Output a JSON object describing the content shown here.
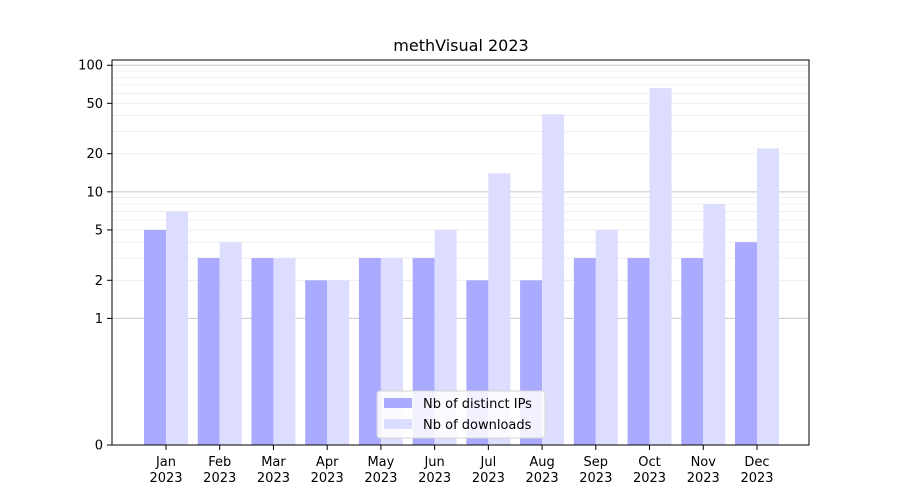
{
  "chart_data": {
    "type": "bar",
    "title": "methVisual 2023",
    "xlabel": "",
    "ylabel": "",
    "scale": "symlog",
    "categories": [
      [
        "Jan",
        "2023"
      ],
      [
        "Feb",
        "2023"
      ],
      [
        "Mar",
        "2023"
      ],
      [
        "Apr",
        "2023"
      ],
      [
        "May",
        "2023"
      ],
      [
        "Jun",
        "2023"
      ],
      [
        "Jul",
        "2023"
      ],
      [
        "Aug",
        "2023"
      ],
      [
        "Sep",
        "2023"
      ],
      [
        "Oct",
        "2023"
      ],
      [
        "Nov",
        "2023"
      ],
      [
        "Dec",
        "2023"
      ]
    ],
    "yticks": [
      0,
      1,
      2,
      5,
      10,
      20,
      50,
      100
    ],
    "ylim": [
      0,
      110
    ],
    "major_gridlines": [
      1,
      10,
      100
    ],
    "series": [
      {
        "name": "Nb of distinct IPs",
        "color": "#aaaaff",
        "values": [
          5,
          3,
          3,
          2,
          3,
          3,
          2,
          2,
          3,
          3,
          3,
          4
        ]
      },
      {
        "name": "Nb of downloads",
        "color": "#ddddff",
        "values": [
          7,
          4,
          3,
          2,
          3,
          5,
          14,
          41,
          5,
          66,
          8,
          22
        ]
      }
    ],
    "legend_position": "bottom-center"
  }
}
